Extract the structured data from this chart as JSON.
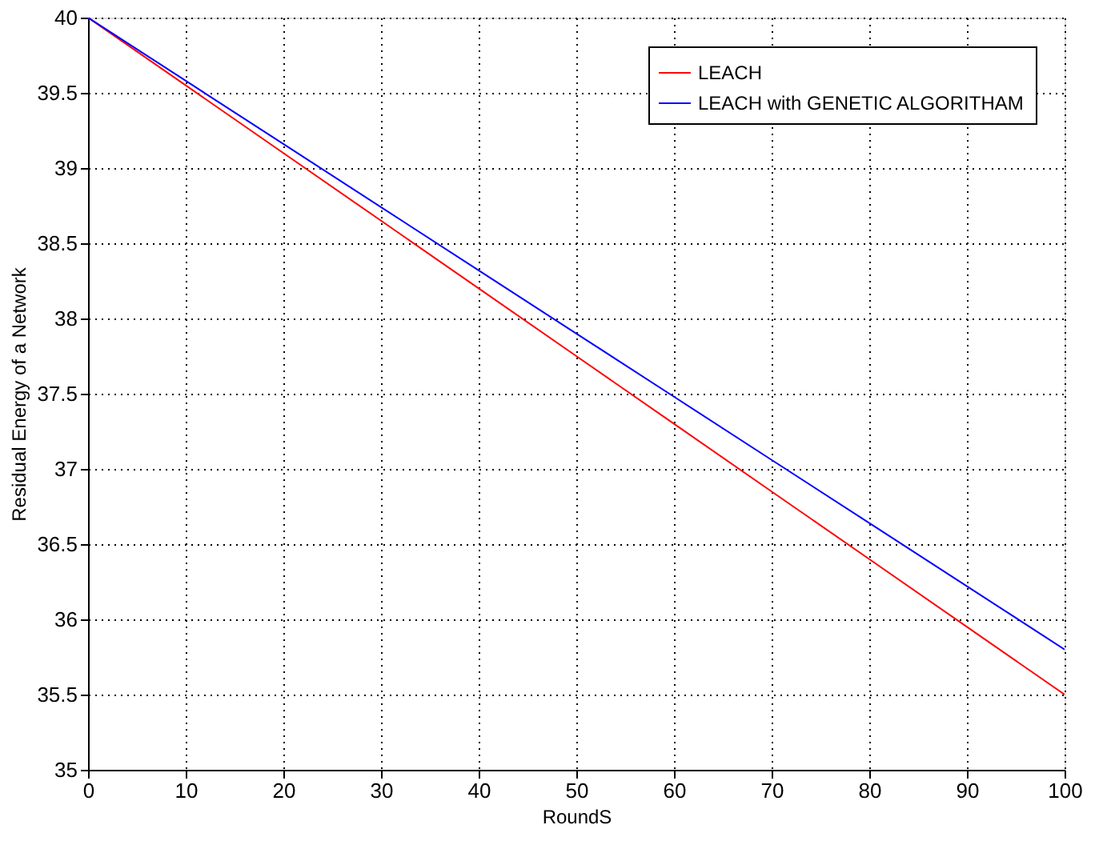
{
  "chart_data": {
    "type": "line",
    "xlabel": "RoundS",
    "ylabel": "Residual Energy of a Network",
    "x": [
      0,
      10,
      20,
      30,
      40,
      50,
      60,
      70,
      80,
      90,
      100
    ],
    "series": [
      {
        "name": "LEACH",
        "color": "#ff0000",
        "values": [
          40,
          39.55,
          39.1,
          38.65,
          38.2,
          37.75,
          37.3,
          36.85,
          36.4,
          35.95,
          35.5
        ]
      },
      {
        "name": "LEACH with GENETIC ALGORITHAM",
        "color": "#0000ff",
        "values": [
          40,
          39.58,
          39.16,
          38.74,
          38.32,
          37.9,
          37.48,
          37.06,
          36.64,
          36.22,
          35.8
        ]
      }
    ],
    "xlim": [
      0,
      100
    ],
    "xticks": [
      0,
      10,
      20,
      30,
      40,
      50,
      60,
      70,
      80,
      90,
      100
    ],
    "ylim": [
      35,
      40
    ],
    "yticks": [
      35,
      35.5,
      36,
      36.5,
      37,
      37.5,
      38,
      38.5,
      39,
      39.5,
      40
    ],
    "grid": true,
    "legend": "top right",
    "line_style": "solid",
    "marker": "none"
  }
}
